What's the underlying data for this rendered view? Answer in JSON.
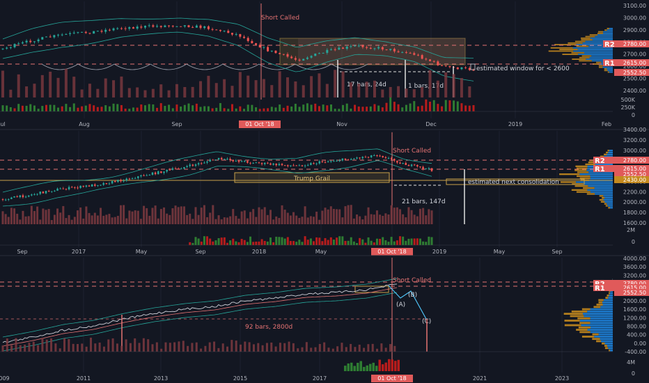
{
  "colors": {
    "background": "#131722",
    "up": "#26a69a",
    "down": "#ef5350",
    "vol_up": "#2e7d32",
    "vol_down": "#b71c1c",
    "vol_neutral": "#7e3a40",
    "axis_text": "#b2b5be",
    "grid": "#1e2230",
    "dash": "#e57373",
    "annotation": "#d0d3da",
    "short_called": "#e57373",
    "zone": "#c8a24a",
    "vp_orange": "#c58a1e",
    "vp_blue": "#1e88e5",
    "vp_gray": "#6b6f7b",
    "date_badge": "#e05a5a"
  },
  "chart_data": [
    {
      "type": "candlestick",
      "timeframe_view": "daily",
      "ylim": [
        2400,
        3100
      ],
      "yticks": [
        "3100.00",
        "3000.00",
        "2900.00",
        "2800.00",
        "2700.00",
        "2600.00",
        "2500.00",
        "2400.00"
      ],
      "level_labels": {
        "r2": "R2",
        "r1": "R1"
      },
      "level_values": {
        "r2": "2780.00",
        "r1": "2615.00",
        "last": "2552.50"
      },
      "vol_ticks": [
        "500K",
        "250K",
        "0"
      ],
      "xticks": [
        "ul",
        "Aug",
        "Sep",
        "01 Oct '18",
        "Nov",
        "Dec",
        "2019",
        "Feb"
      ],
      "annotations": {
        "short_called": "Short Called",
        "count1": "17 bars, 24d",
        "count2": "1 bars, 17d",
        "window": "estimated window for < 2600"
      },
      "series": [
        {
          "x": "Jul",
          "y": 2800
        },
        {
          "x": "Aug",
          "y": 2850
        },
        {
          "x": "Sep",
          "y": 2900
        },
        {
          "x": "Oct",
          "y": 2930
        },
        {
          "x": "Nov",
          "y": 2720
        },
        {
          "x": "Dec",
          "y": 2700
        },
        {
          "x": "Dec end",
          "y": 2552.5
        }
      ]
    },
    {
      "type": "candlestick",
      "timeframe_view": "weekly",
      "ylim": [
        1600,
        3400
      ],
      "yticks": [
        "3400.00",
        "3200.00",
        "3000.00",
        "2800.00",
        "2600.00",
        "2400.00",
        "2200.00",
        "2000.00",
        "1800.00",
        "1600.00"
      ],
      "level_labels": {
        "r2": "R2",
        "r1": "R1"
      },
      "level_values": {
        "r2": "2780.00",
        "r1": "2615.00",
        "last": "2552.50",
        "zone": "2430.00"
      },
      "vol_ticks": [
        "2M",
        "0"
      ],
      "xticks": [
        "Sep",
        "2017",
        "May",
        "Sep",
        "2018",
        "May",
        "01 Oct '18",
        "2019",
        "May",
        "Sep"
      ],
      "annotations": {
        "short_called": "Short Called",
        "trump_grail": "Trump Grail",
        "consolidation": "estimated next consolidation",
        "count": "21 bars, 147d"
      }
    },
    {
      "type": "candlestick",
      "timeframe_view": "monthly",
      "ylim": [
        -400,
        4000
      ],
      "yticks": [
        "4000.00",
        "3600.00",
        "3200.00",
        "2800.00",
        "2400.00",
        "2000.00",
        "1600.00",
        "1200.00",
        "800.00",
        "400.00",
        "0.00",
        "-400.00"
      ],
      "level_labels": {
        "r2": "R2",
        "r1": "R1"
      },
      "level_values": {
        "r2": "2780.00",
        "r1": "2615.00",
        "last": "2552.50"
      },
      "vol_ticks": [
        "4M",
        "0"
      ],
      "xticks": [
        "009",
        "2011",
        "2013",
        "2015",
        "2017",
        "01 Oct '18",
        "2021",
        "2023"
      ],
      "annotations": {
        "short_called": "Short Called",
        "count": "92 bars, 2800d",
        "wave_a": "(A)",
        "wave_b": "(B)",
        "wave_c": "(C)"
      }
    }
  ]
}
